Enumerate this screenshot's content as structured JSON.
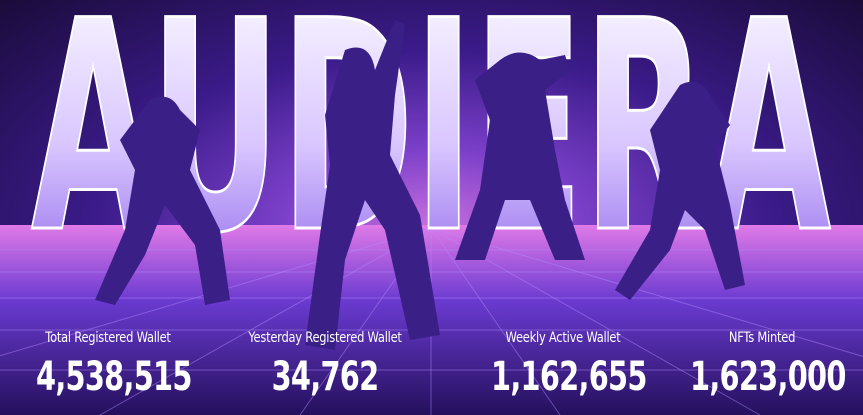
{
  "hero": {
    "brand_title": "AUDIERA",
    "colors": {
      "accent": "#7a3fc8",
      "title_fill": "#e9dcff",
      "silhouette": "#3a1f86"
    }
  },
  "stats": [
    {
      "label": "Total Registered Wallet",
      "value": "4,538,515"
    },
    {
      "label": "Yesterday Registered Wallet",
      "value": "34,762"
    },
    {
      "label": "Weekly Active Wallet",
      "value": "1,162,655"
    },
    {
      "label": "NFTs Minted",
      "value": "1,623,000"
    }
  ]
}
